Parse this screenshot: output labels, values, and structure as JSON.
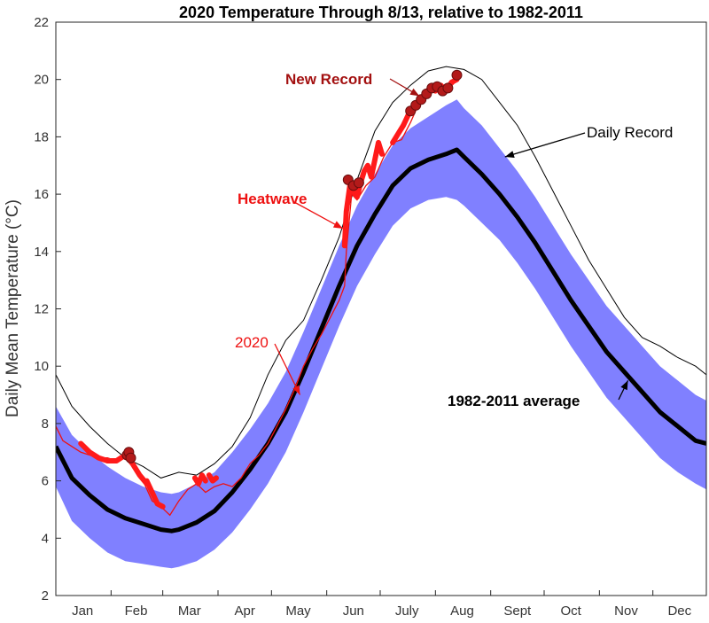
{
  "chart_data": {
    "type": "line",
    "title": "2020 Temperature Through 8/13, relative to 1982-2011",
    "xlabel": "",
    "ylabel": "Daily Mean Temperature (°C)",
    "xlim": [
      1,
      366
    ],
    "ylim": [
      2,
      22
    ],
    "yticks": [
      2,
      4,
      6,
      8,
      10,
      12,
      14,
      16,
      18,
      20,
      22
    ],
    "month_ticks": [
      1,
      32,
      61,
      92,
      122,
      153,
      183,
      214,
      245,
      275,
      306,
      336,
      366
    ],
    "month_label_x": [
      16,
      46,
      76,
      107,
      137,
      168,
      198,
      229,
      260,
      290,
      321,
      351
    ],
    "months": [
      "Jan",
      "Feb",
      "Mar",
      "Apr",
      "May",
      "Jun",
      "July",
      "Aug",
      "Sept",
      "Oct",
      "Nov",
      "Dec"
    ],
    "colors": {
      "band": "#8080ff",
      "average": "#000000",
      "record": "#000000",
      "y2020": "#ee1111",
      "heatwave": "#ff1a1a",
      "new_record_marker": "#b31a1a",
      "heatwave_label": "#ee1111",
      "new_record_label": "#a31010",
      "label_2020": "#ee1111"
    },
    "series": [
      {
        "name": "1982-2011 average",
        "x": [
          1,
          10,
          20,
          30,
          40,
          50,
          60,
          66,
          70,
          80,
          90,
          100,
          110,
          120,
          130,
          140,
          150,
          160,
          170,
          180,
          190,
          200,
          210,
          220,
          226,
          230,
          240,
          250,
          260,
          270,
          280,
          290,
          300,
          310,
          320,
          330,
          340,
          350,
          360,
          366
        ],
        "y": [
          7.2,
          6.1,
          5.5,
          5.0,
          4.7,
          4.5,
          4.3,
          4.25,
          4.3,
          4.55,
          4.95,
          5.6,
          6.4,
          7.3,
          8.4,
          9.8,
          11.3,
          12.8,
          14.2,
          15.3,
          16.3,
          16.9,
          17.2,
          17.4,
          17.55,
          17.3,
          16.7,
          16.0,
          15.2,
          14.3,
          13.3,
          12.3,
          11.4,
          10.5,
          9.8,
          9.1,
          8.4,
          7.9,
          7.4,
          7.3
        ]
      },
      {
        "name": "Daily Record",
        "x": [
          1,
          10,
          20,
          30,
          40,
          50,
          60,
          70,
          80,
          90,
          100,
          110,
          120,
          130,
          140,
          150,
          160,
          170,
          180,
          190,
          200,
          210,
          220,
          230,
          240,
          250,
          260,
          270,
          280,
          290,
          300,
          310,
          320,
          330,
          340,
          350,
          360,
          366
        ],
        "y": [
          9.7,
          8.6,
          7.9,
          7.3,
          6.8,
          6.5,
          6.1,
          6.3,
          6.2,
          6.6,
          7.2,
          8.2,
          9.7,
          10.9,
          11.6,
          13.0,
          14.5,
          16.5,
          18.2,
          19.2,
          19.8,
          20.3,
          20.45,
          20.35,
          20.0,
          19.2,
          18.4,
          17.3,
          16.1,
          14.9,
          13.7,
          12.7,
          11.7,
          11.0,
          10.7,
          10.3,
          10.0,
          9.7
        ]
      },
      {
        "name": "2020",
        "x": [
          1,
          5,
          10,
          15,
          20,
          25,
          30,
          35,
          40,
          45,
          50,
          55,
          60,
          65,
          70,
          75,
          80,
          85,
          90,
          95,
          100,
          105,
          110,
          115,
          120,
          125,
          130,
          135,
          140,
          145,
          150,
          155,
          160,
          163,
          164,
          167,
          170,
          175,
          180,
          185,
          190,
          195,
          200,
          205,
          210,
          215,
          220,
          225,
          226
        ],
        "y": [
          7.9,
          7.4,
          7.2,
          7.0,
          6.9,
          6.8,
          6.8,
          6.7,
          6.9,
          6.4,
          6.0,
          5.3,
          5.1,
          4.8,
          5.3,
          5.7,
          5.9,
          5.6,
          5.8,
          5.9,
          5.8,
          6.1,
          6.6,
          6.9,
          7.3,
          7.9,
          8.5,
          9.2,
          10.0,
          10.6,
          11.1,
          11.7,
          12.3,
          12.8,
          14.0,
          16.0,
          15.8,
          16.3,
          16.6,
          17.3,
          17.8,
          17.9,
          18.5,
          19.2,
          19.5,
          19.7,
          19.6,
          19.9,
          20.2
        ]
      }
    ],
    "band": {
      "name": "",
      "x": [
        1,
        10,
        20,
        30,
        40,
        50,
        60,
        66,
        70,
        80,
        90,
        100,
        110,
        120,
        130,
        140,
        150,
        160,
        170,
        180,
        190,
        200,
        210,
        220,
        226,
        230,
        240,
        250,
        260,
        270,
        280,
        290,
        300,
        310,
        320,
        330,
        340,
        350,
        360,
        366
      ],
      "upper": [
        8.6,
        7.6,
        7.0,
        6.5,
        6.1,
        5.8,
        5.6,
        5.55,
        5.6,
        5.9,
        6.3,
        7.0,
        7.8,
        8.7,
        9.8,
        11.2,
        12.7,
        14.2,
        15.6,
        16.7,
        17.7,
        18.3,
        18.7,
        19.1,
        19.3,
        19.0,
        18.4,
        17.6,
        16.8,
        15.9,
        14.9,
        13.9,
        13.0,
        12.1,
        11.4,
        10.7,
        10.0,
        9.5,
        9.0,
        8.8
      ],
      "lower": [
        5.8,
        4.6,
        4.0,
        3.5,
        3.2,
        3.1,
        3.0,
        2.95,
        3.0,
        3.2,
        3.6,
        4.2,
        5.0,
        5.9,
        7.0,
        8.4,
        9.9,
        11.4,
        12.8,
        13.9,
        14.9,
        15.5,
        15.8,
        15.9,
        15.8,
        15.6,
        15.0,
        14.4,
        13.6,
        12.7,
        11.7,
        10.7,
        9.8,
        8.9,
        8.2,
        7.5,
        6.8,
        6.3,
        5.9,
        5.7
      ]
    },
    "heatwave_segments": [
      {
        "x": [
          15,
          20,
          25,
          30,
          35,
          40,
          44,
          48,
          52
        ],
        "y": [
          7.3,
          7.0,
          6.8,
          6.7,
          6.7,
          6.9,
          6.6,
          6.2,
          5.9
        ]
      },
      {
        "x": [
          52,
          55,
          58,
          61
        ],
        "y": [
          6.0,
          5.6,
          5.2,
          5.1
        ]
      },
      {
        "x": [
          79,
          81,
          83,
          85
        ],
        "y": [
          6.1,
          5.9,
          6.2,
          6.0
        ]
      },
      {
        "x": [
          87,
          89,
          91
        ],
        "y": [
          6.2,
          6.0,
          6.1
        ]
      },
      {
        "x": [
          163,
          164,
          166,
          168,
          170,
          172,
          174,
          176,
          178,
          180,
          182,
          184
        ],
        "y": [
          14.2,
          15.4,
          16.3,
          16.1,
          15.9,
          16.4,
          16.8,
          17.0,
          16.6,
          17.2,
          17.8,
          17.4
        ]
      },
      {
        "x": [
          190,
          193,
          196,
          199,
          202,
          205,
          208,
          211,
          214,
          217,
          220,
          223,
          226
        ],
        "y": [
          17.8,
          18.1,
          18.4,
          18.8,
          19.0,
          19.2,
          19.5,
          19.7,
          19.6,
          19.8,
          19.6,
          19.9,
          20.0
        ]
      }
    ],
    "new_record_points": {
      "x": [
        41,
        42,
        43,
        165,
        168,
        171,
        200,
        203,
        206,
        209,
        212,
        215,
        218,
        221,
        226
      ],
      "y": [
        6.9,
        7.0,
        6.8,
        16.5,
        16.3,
        16.4,
        18.9,
        19.1,
        19.3,
        19.5,
        19.7,
        19.75,
        19.6,
        19.7,
        20.15
      ]
    },
    "annotations": {
      "new_record": "New Record",
      "heatwave": "Heatwave",
      "label_2020": "2020",
      "daily_record": "Daily Record",
      "average": "1982-2011 average"
    }
  }
}
